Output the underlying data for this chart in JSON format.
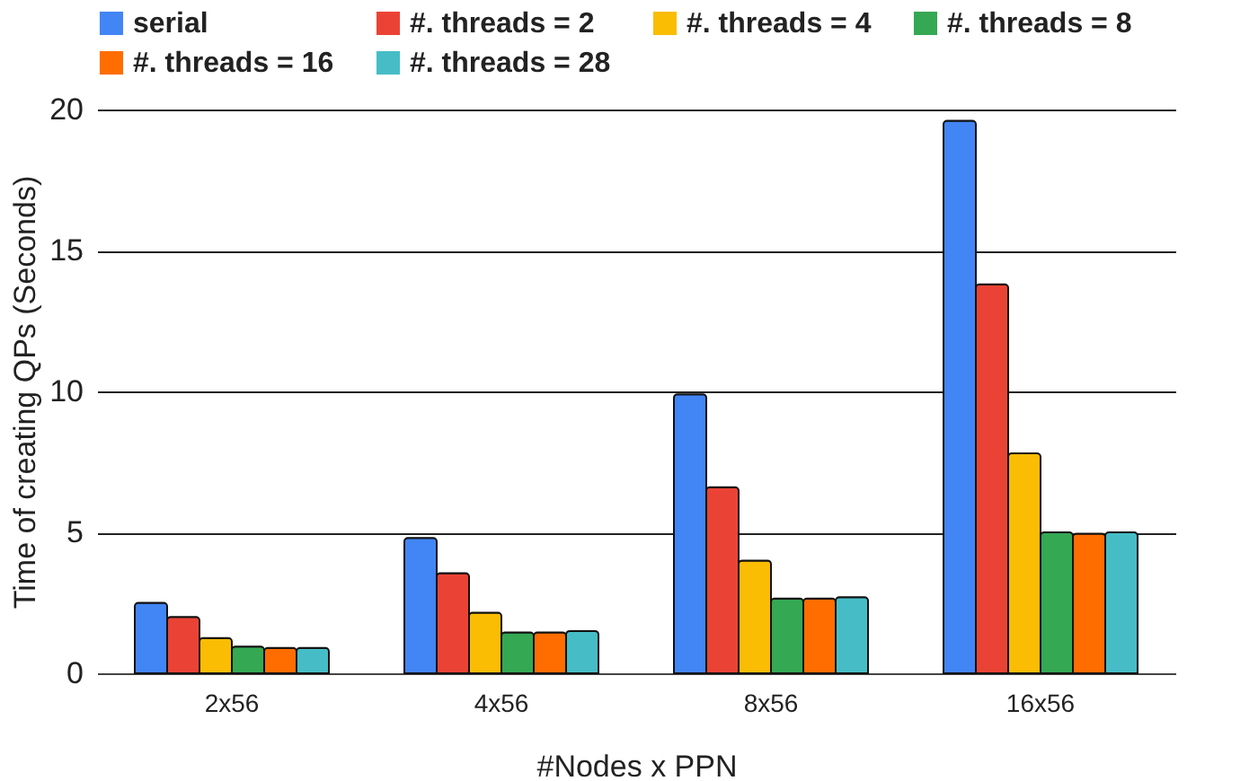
{
  "chart_data": {
    "type": "bar",
    "xlabel": "#Nodes x PPN",
    "ylabel": "Time of creating QPs (Seconds)",
    "categories": [
      "2x56",
      "4x56",
      "8x56",
      "16x56"
    ],
    "series": [
      {
        "name": "serial",
        "color": "#4285f4",
        "values": [
          2.5,
          4.8,
          9.9,
          19.6
        ]
      },
      {
        "name": "#. threads = 2",
        "color": "#ea4335",
        "values": [
          2.0,
          3.55,
          6.6,
          13.8
        ]
      },
      {
        "name": "#. threads = 4",
        "color": "#fbbc04",
        "values": [
          1.25,
          2.15,
          4.0,
          7.8
        ]
      },
      {
        "name": "#. threads = 8",
        "color": "#34a853",
        "values": [
          0.95,
          1.45,
          2.65,
          5.0
        ]
      },
      {
        "name": "#. threads = 16",
        "color": "#ff6d01",
        "values": [
          0.9,
          1.45,
          2.65,
          4.95
        ]
      },
      {
        "name": "#. threads = 28",
        "color": "#46bdc6",
        "values": [
          0.9,
          1.5,
          2.7,
          5.0
        ]
      }
    ],
    "ylim": [
      0,
      20
    ],
    "yticks": [
      0,
      5,
      10,
      15,
      20
    ],
    "grid": "y",
    "legend": "top"
  }
}
